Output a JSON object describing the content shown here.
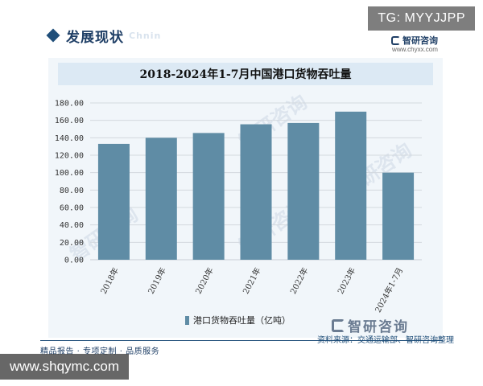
{
  "header": {
    "section_title": "发展现状",
    "section_title_en": "Chnin",
    "tg_badge": "TG: MYYJJPP",
    "brand_name": "智研咨询",
    "brand_url": "www.chyxx.com"
  },
  "watermark_text": "智研咨询",
  "chart_data": {
    "type": "bar",
    "title": "2018-2024年1-7月中国港口货物吞吐量",
    "categories": [
      "2018年",
      "2019年",
      "2020年",
      "2021年",
      "2022年",
      "2023年",
      "2024年1-7月"
    ],
    "series": [
      {
        "name": "港口货物吞吐量（亿吨）",
        "values": [
          133.0,
          140.0,
          145.5,
          155.5,
          157.0,
          170.0,
          100.0
        ]
      }
    ],
    "ylim": [
      0,
      180
    ],
    "yticks": [
      "0.00",
      "20.00",
      "40.00",
      "60.00",
      "80.00",
      "100.00",
      "120.00",
      "140.00",
      "160.00",
      "180.00"
    ],
    "xlabel": "",
    "ylabel": "",
    "grid": true,
    "legend_position": "bottom",
    "bar_color": "#5f8ca5"
  },
  "footer": {
    "brand_name": "智研咨询",
    "source": "资料来源：交通运输部、智研咨询整理",
    "tagline": "精品报告 · 专项定制 · 品质服务",
    "url_badge": "www.shqymc.com"
  }
}
